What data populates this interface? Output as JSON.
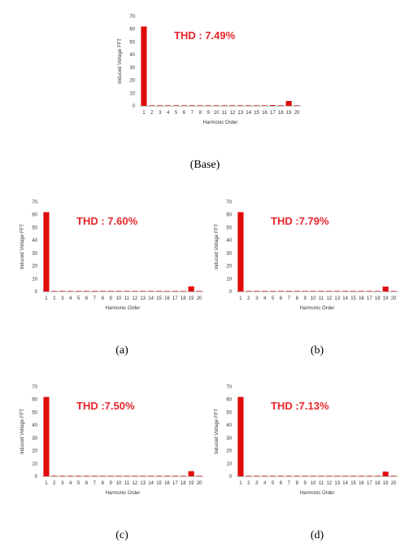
{
  "colors": {
    "bar": "#e00a0a",
    "axis": "#bfbfbf",
    "text": "#333333",
    "thd": "#e8252b"
  },
  "chart_data": [
    {
      "type": "bar",
      "caption": "(Base)",
      "annotation": "THD : 7.49%",
      "categories": [
        "1",
        "2",
        "3",
        "4",
        "5",
        "6",
        "7",
        "8",
        "9",
        "10",
        "11",
        "12",
        "13",
        "14",
        "15",
        "16",
        "17",
        "18",
        "19",
        "20"
      ],
      "values": [
        62,
        0.2,
        0.1,
        0.1,
        0.1,
        0.1,
        0.1,
        0.1,
        0.1,
        0.1,
        0.1,
        0.1,
        0.1,
        0.1,
        0.1,
        0.1,
        0.6,
        0.2,
        3.8,
        0.2
      ],
      "xlabel": "Harmonic Order",
      "ylabel": "Induced Voltage FFT",
      "ylim": [
        0,
        70
      ],
      "yticks": [
        "0",
        "10",
        "20",
        "30",
        "40",
        "50",
        "60",
        "70"
      ],
      "grid": false
    },
    {
      "type": "bar",
      "caption": "(a)",
      "annotation": "THD : 7.60%",
      "categories": [
        "1",
        "2",
        "3",
        "4",
        "5",
        "6",
        "7",
        "8",
        "9",
        "10",
        "11",
        "12",
        "13",
        "14",
        "15",
        "16",
        "17",
        "18",
        "19",
        "20"
      ],
      "values": [
        62,
        0.2,
        0.1,
        0.1,
        0.1,
        0.1,
        0.4,
        0.1,
        0.1,
        0.1,
        0.1,
        0.1,
        0.1,
        0.1,
        0.1,
        0.1,
        0.3,
        0.2,
        4.0,
        0.2
      ],
      "xlabel": "Harmonic Order",
      "ylabel": "Induced Voltage FFT",
      "ylim": [
        0,
        70
      ],
      "yticks": [
        "0",
        "10",
        "20",
        "30",
        "40",
        "50",
        "60",
        "70"
      ],
      "grid": false
    },
    {
      "type": "bar",
      "caption": "(b)",
      "annotation": "THD :7.79%",
      "categories": [
        "1",
        "2",
        "3",
        "4",
        "5",
        "6",
        "7",
        "8",
        "9",
        "10",
        "11",
        "12",
        "13",
        "14",
        "15",
        "16",
        "17",
        "18",
        "19",
        "20"
      ],
      "values": [
        62,
        0.2,
        0.1,
        0.1,
        0.1,
        0.1,
        0.4,
        0.1,
        0.1,
        0.1,
        0.1,
        0.1,
        0.1,
        0.1,
        0.1,
        0.1,
        0.2,
        0.2,
        3.8,
        0.2
      ],
      "xlabel": "Harmonic Order",
      "ylabel": "Induced Voltage FFT",
      "ylim": [
        0,
        70
      ],
      "yticks": [
        "0",
        "10",
        "20",
        "30",
        "40",
        "50",
        "60",
        "70"
      ],
      "grid": false
    },
    {
      "type": "bar",
      "caption": "(c)",
      "annotation": "THD :7.50%",
      "categories": [
        "1",
        "2",
        "3",
        "4",
        "5",
        "6",
        "7",
        "8",
        "9",
        "10",
        "11",
        "12",
        "13",
        "14",
        "15",
        "16",
        "17",
        "18",
        "19",
        "20"
      ],
      "values": [
        62,
        0.2,
        0.1,
        0.1,
        0.1,
        0.1,
        0.2,
        0.1,
        0.1,
        0.1,
        0.1,
        0.1,
        0.1,
        0.1,
        0.1,
        0.1,
        0.2,
        0.2,
        4.0,
        0.2
      ],
      "xlabel": "Harmonic Order",
      "ylabel": "Induced Voltage FFT",
      "ylim": [
        0,
        70
      ],
      "yticks": [
        "0",
        "10",
        "20",
        "30",
        "40",
        "50",
        "60",
        "70"
      ],
      "grid": false
    },
    {
      "type": "bar",
      "caption": "(d)",
      "annotation": "THD :7.13%",
      "categories": [
        "1",
        "2",
        "3",
        "4",
        "5",
        "6",
        "7",
        "8",
        "9",
        "10",
        "11",
        "12",
        "13",
        "14",
        "15",
        "16",
        "17",
        "18",
        "19",
        "20"
      ],
      "values": [
        62,
        0.2,
        0.1,
        0.1,
        0.1,
        0.1,
        0.2,
        0.1,
        0.1,
        0.1,
        0.1,
        0.1,
        0.1,
        0.1,
        0.1,
        0.1,
        0.2,
        0.2,
        3.6,
        0.2
      ],
      "xlabel": "Harmonic Order",
      "ylabel": "Induced Voltage FFT",
      "ylim": [
        0,
        70
      ],
      "yticks": [
        "0",
        "10",
        "20",
        "30",
        "40",
        "50",
        "60",
        "70"
      ],
      "grid": false
    }
  ]
}
